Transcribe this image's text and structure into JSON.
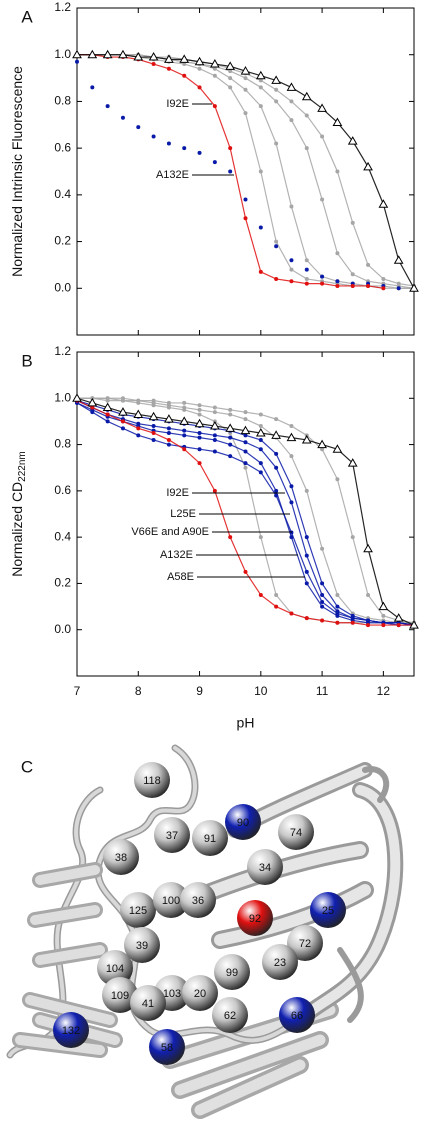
{
  "chart_data": [
    {
      "type": "line",
      "label": "A",
      "ylabel": "Normalized Intrinsic Fluorescence",
      "xlim": [
        7,
        12.5
      ],
      "xticks": [
        7,
        8,
        9,
        10,
        11,
        12
      ],
      "show_xtick_labels": false,
      "ylim": [
        -0.2,
        1.2
      ],
      "yticks": [
        {
          "value": 0,
          "label": "0.0"
        },
        0.2,
        0.4,
        0.6,
        0.8,
        {
          "value": 1,
          "label": "1.0"
        },
        1.2
      ],
      "x": [
        7,
        7.25,
        7.5,
        7.75,
        8,
        8.25,
        8.5,
        8.75,
        9,
        9.25,
        9.5,
        9.75,
        10,
        10.25,
        10.5,
        10.75,
        11,
        11.25,
        11.5,
        11.75,
        12,
        12.25,
        12.5
      ],
      "series": [
        {
          "color": "#a6a6a6",
          "marker": "circle",
          "values": [
            1,
            1,
            1,
            1,
            0.99,
            0.99,
            0.98,
            0.97,
            0.96,
            0.94,
            0.9,
            0.85,
            0.78,
            0.62,
            0.35,
            0.12,
            0.05,
            0.03,
            0.02,
            0.01,
            0.01,
            0,
            0
          ]
        },
        {
          "color": "#a6a6a6",
          "marker": "circle",
          "values": [
            1,
            1,
            1,
            1,
            1,
            0.99,
            0.98,
            0.97,
            0.96,
            0.95,
            0.93,
            0.9,
            0.86,
            0.8,
            0.72,
            0.6,
            0.38,
            0.15,
            0.06,
            0.03,
            0.02,
            0.01,
            0
          ]
        },
        {
          "color": "#a6a6a6",
          "marker": "circle",
          "values": [
            1,
            1,
            1,
            1,
            1,
            0.99,
            0.99,
            0.98,
            0.97,
            0.96,
            0.94,
            0.92,
            0.89,
            0.85,
            0.8,
            0.74,
            0.65,
            0.5,
            0.28,
            0.1,
            0.04,
            0.02,
            0.01
          ]
        },
        {
          "color": "#a6a6a6",
          "marker": "circle",
          "values": [
            1,
            1,
            1,
            1,
            0.99,
            0.98,
            0.97,
            0.96,
            0.94,
            0.91,
            0.86,
            0.75,
            0.5,
            0.2,
            0.08,
            0.04,
            0.03,
            0.02,
            0.01,
            0.01,
            0,
            0,
            0
          ]
        },
        {
          "color": "#0a1aa8",
          "marker": "circle",
          "line": false,
          "values": [
            0.97,
            0.86,
            0.78,
            0.73,
            0.69,
            0.65,
            0.62,
            0.6,
            0.58,
            0.54,
            0.5,
            0.38,
            0.26,
            0.18,
            0.12,
            0.08,
            0.05,
            0.03,
            0.02,
            0.02,
            0.01,
            0,
            null
          ]
        },
        {
          "color": "#e01010",
          "marker": "circle",
          "values": [
            1,
            1,
            0.99,
            0.99,
            0.98,
            0.96,
            0.94,
            0.91,
            0.86,
            0.78,
            0.6,
            0.3,
            0.07,
            0.04,
            0.03,
            0.02,
            0.02,
            0.01,
            0.01,
            0.01,
            0,
            null,
            null
          ]
        },
        {
          "color": "#000000",
          "marker": "triangle",
          "values": [
            1,
            1,
            1,
            1,
            0.99,
            0.99,
            0.98,
            0.98,
            0.97,
            0.96,
            0.95,
            0.93,
            0.91,
            0.89,
            0.86,
            0.82,
            0.77,
            0.71,
            0.63,
            0.52,
            0.36,
            0.12,
            0
          ]
        }
      ],
      "annotations": [
        {
          "text": "I92E"
        },
        {
          "text": "A132E"
        }
      ]
    },
    {
      "type": "line",
      "label": "B",
      "ylabel": "Normalized CD",
      "ylabel_subscript": "222nm",
      "xlabel": "pH",
      "xlim": [
        7,
        12.5
      ],
      "xticks": [
        7,
        8,
        9,
        10,
        11,
        12
      ],
      "show_xtick_labels": true,
      "ylim": [
        -0.2,
        1.2
      ],
      "yticks": [
        {
          "value": 0,
          "label": "0.0"
        },
        0.2,
        0.4,
        0.6,
        0.8,
        {
          "value": 1,
          "label": "1.0"
        },
        1.2
      ],
      "x": [
        7,
        7.25,
        7.5,
        7.75,
        8,
        8.25,
        8.5,
        8.75,
        9,
        9.25,
        9.5,
        9.75,
        10,
        10.25,
        10.5,
        10.75,
        11,
        11.25,
        11.5,
        11.75,
        12,
        12.25,
        12.5
      ],
      "series": [
        {
          "color": "#a6a6a6",
          "marker": "circle",
          "values": [
            1,
            1,
            0.99,
            0.99,
            0.98,
            0.97,
            0.96,
            0.95,
            0.93,
            0.9,
            0.85,
            0.7,
            0.4,
            0.15,
            0.07,
            0.05,
            0.04,
            0.03,
            0.03,
            0.03,
            0.03,
            0.03,
            0.03
          ]
        },
        {
          "color": "#a6a6a6",
          "marker": "circle",
          "values": [
            1,
            1,
            1,
            0.99,
            0.99,
            0.98,
            0.97,
            0.96,
            0.95,
            0.94,
            0.93,
            0.91,
            0.88,
            0.83,
            0.75,
            0.6,
            0.35,
            0.15,
            0.07,
            0.05,
            0.04,
            0.03,
            0.03
          ]
        },
        {
          "color": "#a6a6a6",
          "marker": "circle",
          "values": [
            1,
            1,
            1,
            1,
            0.99,
            0.99,
            0.98,
            0.98,
            0.97,
            0.96,
            0.95,
            0.94,
            0.93,
            0.91,
            0.88,
            0.84,
            0.78,
            0.65,
            0.4,
            0.15,
            0.06,
            0.04,
            0.03
          ]
        },
        {
          "color": "#0a1aa8",
          "marker": "circle",
          "values": [
            0.98,
            0.95,
            0.92,
            0.9,
            0.88,
            0.86,
            0.85,
            0.84,
            0.83,
            0.82,
            0.8,
            0.77,
            0.72,
            0.6,
            0.4,
            0.2,
            0.1,
            0.06,
            0.04,
            0.03,
            0.03,
            0.02,
            0.02
          ]
        },
        {
          "color": "#0a1aa8",
          "marker": "circle",
          "values": [
            0.98,
            0.94,
            0.9,
            0.87,
            0.84,
            0.82,
            0.8,
            0.79,
            0.78,
            0.77,
            0.75,
            0.72,
            0.68,
            0.58,
            0.42,
            0.25,
            0.12,
            0.07,
            0.05,
            0.04,
            0.03,
            0.03,
            0.02
          ]
        },
        {
          "color": "#0a1aa8",
          "marker": "circle",
          "values": [
            0.99,
            0.96,
            0.93,
            0.91,
            0.89,
            0.88,
            0.87,
            0.86,
            0.85,
            0.84,
            0.83,
            0.81,
            0.78,
            0.7,
            0.55,
            0.32,
            0.15,
            0.08,
            0.05,
            0.04,
            0.03,
            0.03,
            0.02
          ]
        },
        {
          "color": "#0a1aa8",
          "marker": "circle",
          "values": [
            0.99,
            0.97,
            0.95,
            0.93,
            0.92,
            0.91,
            0.9,
            0.89,
            0.88,
            0.87,
            0.86,
            0.84,
            0.82,
            0.76,
            0.62,
            0.4,
            0.2,
            0.1,
            0.06,
            0.04,
            0.03,
            0.03,
            0.02
          ]
        },
        {
          "color": "#e01010",
          "marker": "circle",
          "values": [
            0.99,
            0.96,
            0.93,
            0.9,
            0.87,
            0.85,
            0.82,
            0.78,
            0.72,
            0.6,
            0.4,
            0.25,
            0.15,
            0.1,
            0.07,
            0.05,
            0.04,
            0.03,
            0.03,
            0.02,
            0.02,
            0.02,
            0.02
          ]
        },
        {
          "color": "#000000",
          "marker": "triangle",
          "values": [
            1,
            0.98,
            0.96,
            0.94,
            0.93,
            0.92,
            0.91,
            0.9,
            0.89,
            0.88,
            0.87,
            0.86,
            0.85,
            0.84,
            0.83,
            0.82,
            0.8,
            0.78,
            0.72,
            0.35,
            0.1,
            0.05,
            0.02
          ]
        }
      ],
      "annotations": [
        {
          "text": "I92E"
        },
        {
          "text": "L25E"
        },
        {
          "text": "V66E and A90E"
        },
        {
          "text": "A132E"
        },
        {
          "text": "A58E"
        }
      ]
    }
  ],
  "structure": {
    "label": "C",
    "residues": [
      {
        "label": "118",
        "color": "#c8c8c8"
      },
      {
        "label": "37",
        "color": "#c8c8c8"
      },
      {
        "label": "91",
        "color": "#c8c8c8"
      },
      {
        "label": "90",
        "color": "#1020b0"
      },
      {
        "label": "74",
        "color": "#c8c8c8"
      },
      {
        "label": "38",
        "color": "#c8c8c8"
      },
      {
        "label": "34",
        "color": "#c8c8c8"
      },
      {
        "label": "92",
        "color": "#e01010"
      },
      {
        "label": "25",
        "color": "#1020b0"
      },
      {
        "label": "125",
        "color": "#c8c8c8"
      },
      {
        "label": "100",
        "color": "#c8c8c8"
      },
      {
        "label": "36",
        "color": "#c8c8c8"
      },
      {
        "label": "72",
        "color": "#c8c8c8"
      },
      {
        "label": "39",
        "color": "#c8c8c8"
      },
      {
        "label": "23",
        "color": "#c8c8c8"
      },
      {
        "label": "99",
        "color": "#c8c8c8"
      },
      {
        "label": "104",
        "color": "#c8c8c8"
      },
      {
        "label": "109",
        "color": "#c8c8c8"
      },
      {
        "label": "103",
        "color": "#c8c8c8"
      },
      {
        "label": "20",
        "color": "#c8c8c8"
      },
      {
        "label": "41",
        "color": "#c8c8c8"
      },
      {
        "label": "66",
        "color": "#1020b0"
      },
      {
        "label": "62",
        "color": "#c8c8c8"
      },
      {
        "label": "132",
        "color": "#1020b0"
      },
      {
        "label": "58",
        "color": "#1020b0"
      }
    ]
  }
}
